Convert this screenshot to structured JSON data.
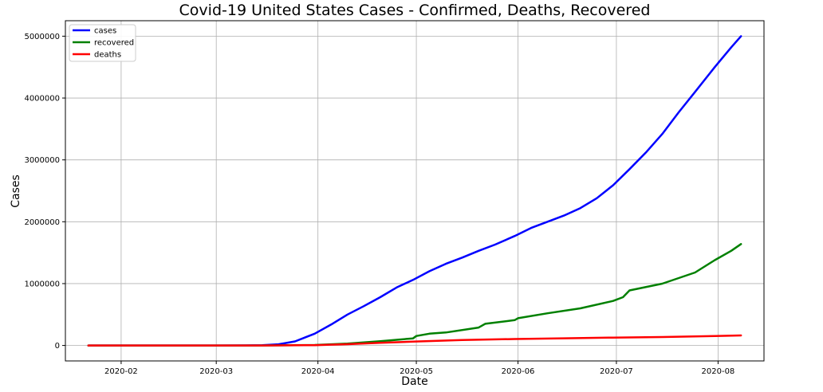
{
  "chart_data": {
    "type": "line",
    "title": "Covid-19 United States Cases - Confirmed, Deaths, Recovered",
    "xlabel": "Date",
    "ylabel": "Cases",
    "xlim": [
      "2020-01-15",
      "2020-08-15"
    ],
    "ylim": [
      -250000,
      5250000
    ],
    "x_ticks": [
      "2020-02-01",
      "2020-03-01",
      "2020-04-01",
      "2020-05-01",
      "2020-06-01",
      "2020-07-01",
      "2020-08-01"
    ],
    "x_tick_labels": [
      "2020-02",
      "2020-03",
      "2020-04",
      "2020-05",
      "2020-06",
      "2020-07",
      "2020-08"
    ],
    "y_ticks": [
      0,
      1000000,
      2000000,
      3000000,
      4000000,
      5000000
    ],
    "y_tick_labels": [
      "0",
      "1000000",
      "2000000",
      "3000000",
      "4000000",
      "5000000"
    ],
    "grid": true,
    "legend_position": "top-left",
    "series": [
      {
        "name": "cases",
        "color": "#0000ff",
        "points": [
          [
            "2020-01-22",
            1
          ],
          [
            "2020-02-01",
            8
          ],
          [
            "2020-02-15",
            15
          ],
          [
            "2020-03-01",
            75
          ],
          [
            "2020-03-10",
            1000
          ],
          [
            "2020-03-15",
            3500
          ],
          [
            "2020-03-20",
            19000
          ],
          [
            "2020-03-25",
            66000
          ],
          [
            "2020-03-31",
            190000
          ],
          [
            "2020-04-05",
            337000
          ],
          [
            "2020-04-10",
            500000
          ],
          [
            "2020-04-15",
            636000
          ],
          [
            "2020-04-20",
            780000
          ],
          [
            "2020-04-25",
            938000
          ],
          [
            "2020-04-30",
            1060000
          ],
          [
            "2020-05-05",
            1200000
          ],
          [
            "2020-05-10",
            1320000
          ],
          [
            "2020-05-15",
            1420000
          ],
          [
            "2020-05-20",
            1530000
          ],
          [
            "2020-05-25",
            1630000
          ],
          [
            "2020-05-31",
            1770000
          ],
          [
            "2020-06-05",
            1900000
          ],
          [
            "2020-06-10",
            2000000
          ],
          [
            "2020-06-15",
            2100000
          ],
          [
            "2020-06-20",
            2220000
          ],
          [
            "2020-06-25",
            2380000
          ],
          [
            "2020-06-30",
            2590000
          ],
          [
            "2020-07-05",
            2850000
          ],
          [
            "2020-07-10",
            3120000
          ],
          [
            "2020-07-15",
            3420000
          ],
          [
            "2020-07-20",
            3770000
          ],
          [
            "2020-07-25",
            4100000
          ],
          [
            "2020-07-31",
            4500000
          ],
          [
            "2020-08-05",
            4820000
          ],
          [
            "2020-08-08",
            5000000
          ]
        ]
      },
      {
        "name": "recovered",
        "color": "#008000",
        "points": [
          [
            "2020-01-22",
            0
          ],
          [
            "2020-03-01",
            7
          ],
          [
            "2020-03-15",
            100
          ],
          [
            "2020-03-31",
            7000
          ],
          [
            "2020-04-10",
            30000
          ],
          [
            "2020-04-20",
            70000
          ],
          [
            "2020-04-30",
            115000
          ],
          [
            "2020-05-01",
            153000
          ],
          [
            "2020-05-05",
            190000
          ],
          [
            "2020-05-10",
            210000
          ],
          [
            "2020-05-20",
            290000
          ],
          [
            "2020-05-22",
            350000
          ],
          [
            "2020-05-31",
            410000
          ],
          [
            "2020-06-01",
            440000
          ],
          [
            "2020-06-10",
            520000
          ],
          [
            "2020-06-20",
            600000
          ],
          [
            "2020-06-30",
            720000
          ],
          [
            "2020-07-03",
            780000
          ],
          [
            "2020-07-05",
            890000
          ],
          [
            "2020-07-15",
            1000000
          ],
          [
            "2020-07-25",
            1180000
          ],
          [
            "2020-07-31",
            1380000
          ],
          [
            "2020-08-05",
            1530000
          ],
          [
            "2020-08-08",
            1640000
          ]
        ]
      },
      {
        "name": "deaths",
        "color": "#ff0000",
        "points": [
          [
            "2020-01-22",
            0
          ],
          [
            "2020-03-01",
            1
          ],
          [
            "2020-03-15",
            60
          ],
          [
            "2020-03-31",
            5000
          ],
          [
            "2020-04-10",
            20000
          ],
          [
            "2020-04-20",
            42000
          ],
          [
            "2020-04-30",
            62000
          ],
          [
            "2020-05-15",
            87000
          ],
          [
            "2020-05-31",
            104000
          ],
          [
            "2020-06-15",
            116000
          ],
          [
            "2020-06-30",
            127000
          ],
          [
            "2020-07-15",
            137000
          ],
          [
            "2020-07-31",
            153000
          ],
          [
            "2020-08-08",
            162000
          ]
        ]
      }
    ]
  }
}
